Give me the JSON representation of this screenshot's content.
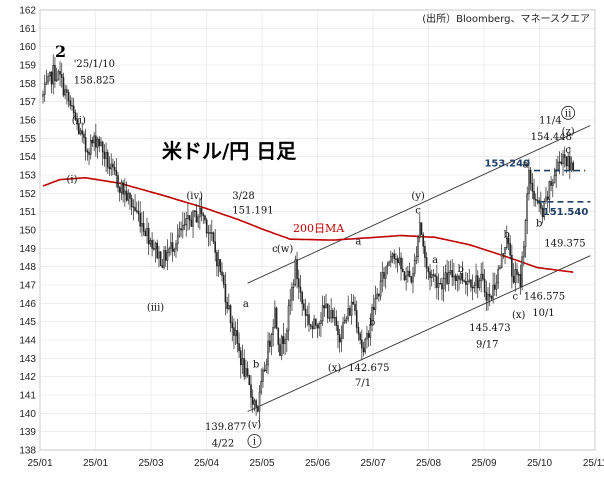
{
  "header": {
    "source": "(出所）Bloomberg、マネースクエア",
    "title": "米ドル/円 日足",
    "wave_degree": "2"
  },
  "colors": {
    "ma": "#c00000",
    "level": "#1f3f66",
    "candle": "#222222"
  },
  "chart_data": {
    "type": "candlestick",
    "title": "米ドル/円 日足",
    "x_ticks": [
      "25/01",
      "25/01",
      "25/03",
      "25/04",
      "25/05",
      "25/06",
      "25/07",
      "25/08",
      "25/09",
      "25/10",
      "25/11"
    ],
    "ylim": [
      138,
      162
    ],
    "y_ticks": [
      138,
      139,
      140,
      141,
      142,
      143,
      144,
      145,
      146,
      147,
      148,
      149,
      150,
      151,
      152,
      153,
      154,
      155,
      156,
      157,
      158,
      159,
      160,
      161,
      162
    ],
    "anchor_closes": [
      {
        "i": 0,
        "v": 157.3
      },
      {
        "i": 6,
        "v": 158.6
      },
      {
        "i": 10,
        "v": 158.3
      },
      {
        "i": 18,
        "v": 156.2
      },
      {
        "i": 25,
        "v": 154.4
      },
      {
        "i": 32,
        "v": 155.0
      },
      {
        "i": 40,
        "v": 153.2
      },
      {
        "i": 48,
        "v": 152.0
      },
      {
        "i": 56,
        "v": 150.8
      },
      {
        "i": 64,
        "v": 149.3
      },
      {
        "i": 70,
        "v": 148.3
      },
      {
        "i": 78,
        "v": 149.5
      },
      {
        "i": 86,
        "v": 150.5
      },
      {
        "i": 93,
        "v": 151.0
      },
      {
        "i": 98,
        "v": 149.8
      },
      {
        "i": 104,
        "v": 147.8
      },
      {
        "i": 110,
        "v": 145.2
      },
      {
        "i": 116,
        "v": 143.0
      },
      {
        "i": 122,
        "v": 141.0
      },
      {
        "i": 126,
        "v": 140.3
      },
      {
        "i": 130,
        "v": 142.5
      },
      {
        "i": 136,
        "v": 145.6
      },
      {
        "i": 139,
        "v": 143.5
      },
      {
        "i": 143,
        "v": 144.8
      },
      {
        "i": 148,
        "v": 148.0
      },
      {
        "i": 152,
        "v": 146.0
      },
      {
        "i": 158,
        "v": 144.6
      },
      {
        "i": 166,
        "v": 145.8
      },
      {
        "i": 174,
        "v": 144.3
      },
      {
        "i": 182,
        "v": 146.1
      },
      {
        "i": 188,
        "v": 143.2
      },
      {
        "i": 193,
        "v": 145.5
      },
      {
        "i": 199,
        "v": 147.3
      },
      {
        "i": 205,
        "v": 149.0
      },
      {
        "i": 211,
        "v": 147.6
      },
      {
        "i": 217,
        "v": 147.4
      },
      {
        "i": 221,
        "v": 150.5
      },
      {
        "i": 225,
        "v": 147.8
      },
      {
        "i": 233,
        "v": 147.1
      },
      {
        "i": 241,
        "v": 147.6
      },
      {
        "i": 249,
        "v": 147.3
      },
      {
        "i": 257,
        "v": 147.2
      },
      {
        "i": 262,
        "v": 146.2
      },
      {
        "i": 268,
        "v": 148.0
      },
      {
        "i": 272,
        "v": 149.8
      },
      {
        "i": 275,
        "v": 147.6
      },
      {
        "i": 280,
        "v": 147.2
      },
      {
        "i": 285,
        "v": 152.9
      },
      {
        "i": 289,
        "v": 151.6
      },
      {
        "i": 293,
        "v": 150.8
      },
      {
        "i": 297,
        "v": 152.2
      },
      {
        "i": 301,
        "v": 153.3
      },
      {
        "i": 305,
        "v": 154.2
      },
      {
        "i": 309,
        "v": 153.4
      },
      {
        "i": 311,
        "v": 153.6
      }
    ],
    "moving_average": {
      "name": "200日MA",
      "anchors": [
        {
          "i": 0,
          "v": 152.4
        },
        {
          "i": 10,
          "v": 152.75
        },
        {
          "i": 25,
          "v": 152.85
        },
        {
          "i": 45,
          "v": 152.55
        },
        {
          "i": 70,
          "v": 151.9
        },
        {
          "i": 95,
          "v": 151.2
        },
        {
          "i": 115,
          "v": 150.55
        },
        {
          "i": 130,
          "v": 150.0
        },
        {
          "i": 145,
          "v": 149.5
        },
        {
          "i": 170,
          "v": 149.45
        },
        {
          "i": 195,
          "v": 149.6
        },
        {
          "i": 210,
          "v": 149.7
        },
        {
          "i": 230,
          "v": 149.6
        },
        {
          "i": 250,
          "v": 149.2
        },
        {
          "i": 270,
          "v": 148.6
        },
        {
          "i": 290,
          "v": 147.95
        },
        {
          "i": 311,
          "v": 147.7
        }
      ]
    },
    "channel_lines": [
      {
        "p1": {
          "i": 120,
          "v": 147.1
        },
        "p2": {
          "i": 321,
          "v": 155.7
        }
      },
      {
        "p1": {
          "i": 120,
          "v": 140.1
        },
        "p2": {
          "i": 321,
          "v": 148.6
        }
      }
    ],
    "levels": [
      {
        "label": "153.240",
        "value": 153.24,
        "i_from": 288,
        "i_to": 318
      },
      {
        "label": "151.540",
        "value": 151.54,
        "i_from": 290,
        "i_to": 321
      }
    ],
    "annotations": [
      {
        "text": "'25/1/10",
        "i": 18,
        "v": 158.9,
        "anchor": "start"
      },
      {
        "text": "158.825",
        "i": 18,
        "v": 158.0,
        "anchor": "start"
      },
      {
        "text": "(ii)",
        "i": 21,
        "v": 155.8,
        "anchor": "middle"
      },
      {
        "text": "(i)",
        "i": 17,
        "v": 152.6,
        "anchor": "middle"
      },
      {
        "text": "(iv)",
        "i": 89,
        "v": 151.7,
        "anchor": "middle"
      },
      {
        "text": "3/28",
        "i": 111,
        "v": 151.7,
        "anchor": "start"
      },
      {
        "text": "151.191",
        "i": 111,
        "v": 150.9,
        "anchor": "start"
      },
      {
        "text": "(iii)",
        "i": 66,
        "v": 145.6,
        "anchor": "middle"
      },
      {
        "text": "139.877",
        "i": 95,
        "v": 139.1,
        "anchor": "start"
      },
      {
        "text": "4/22",
        "i": 99,
        "v": 138.2,
        "anchor": "start"
      },
      {
        "text": "(v)",
        "i": 124,
        "v": 139.2,
        "anchor": "middle"
      },
      {
        "text": "i",
        "i": 124,
        "v": 138.3,
        "anchor": "middle",
        "circle": true
      },
      {
        "text": "c",
        "i": 136,
        "v": 148.8,
        "anchor": "middle"
      },
      {
        "text": "(w)",
        "i": 142,
        "v": 148.8,
        "anchor": "middle"
      },
      {
        "text": "a",
        "i": 119,
        "v": 145.8,
        "anchor": "middle"
      },
      {
        "text": "b",
        "i": 125,
        "v": 142.5,
        "anchor": "middle"
      },
      {
        "text": "(x)",
        "i": 171,
        "v": 142.3,
        "anchor": "middle"
      },
      {
        "text": "142.675",
        "i": 179,
        "v": 142.3,
        "anchor": "start"
      },
      {
        "text": "7/1",
        "i": 183,
        "v": 141.5,
        "anchor": "start"
      },
      {
        "text": "a",
        "i": 185,
        "v": 149.2,
        "anchor": "middle"
      },
      {
        "text": "b",
        "i": 193,
        "v": 144.8,
        "anchor": "middle"
      },
      {
        "text": "(y)",
        "i": 220,
        "v": 151.7,
        "anchor": "middle"
      },
      {
        "text": "c",
        "i": 220,
        "v": 150.9,
        "anchor": "middle"
      },
      {
        "text": "a",
        "i": 230,
        "v": 148.2,
        "anchor": "middle"
      },
      {
        "text": "b",
        "i": 245,
        "v": 147.7,
        "anchor": "middle"
      },
      {
        "text": "145.473",
        "i": 250,
        "v": 144.5,
        "anchor": "start"
      },
      {
        "text": "9/17",
        "i": 254,
        "v": 143.6,
        "anchor": "start"
      },
      {
        "text": "(x)",
        "i": 279,
        "v": 145.2,
        "anchor": "middle"
      },
      {
        "text": "c",
        "i": 277,
        "v": 146.2,
        "anchor": "middle"
      },
      {
        "text": "146.575",
        "i": 282,
        "v": 146.2,
        "anchor": "start"
      },
      {
        "text": "10/1",
        "i": 287,
        "v": 145.3,
        "anchor": "start"
      },
      {
        "text": "b",
        "i": 272,
        "v": 149.6,
        "anchor": "middle"
      },
      {
        "text": "a",
        "i": 283,
        "v": 153.4,
        "anchor": "middle"
      },
      {
        "text": "b",
        "i": 291,
        "v": 150.2,
        "anchor": "middle"
      },
      {
        "text": "149.375",
        "i": 294,
        "v": 149.1,
        "anchor": "start"
      },
      {
        "text": "11/4",
        "i": 291,
        "v": 155.8,
        "anchor": "start"
      },
      {
        "text": "154.448",
        "i": 286,
        "v": 154.9,
        "anchor": "start"
      },
      {
        "text": "ii",
        "i": 308,
        "v": 156.2,
        "anchor": "middle",
        "circle": true
      },
      {
        "text": "(z)",
        "i": 308,
        "v": 155.2,
        "anchor": "middle"
      },
      {
        "text": "c",
        "i": 308,
        "v": 154.2,
        "anchor": "middle"
      }
    ]
  }
}
